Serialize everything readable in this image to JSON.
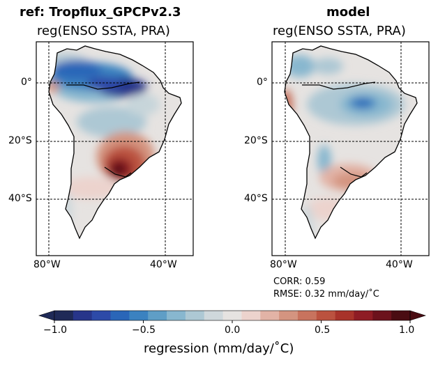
{
  "panels": [
    {
      "name": "ref",
      "title": "ref: Tropflux_GPCPv2.3",
      "subtitle": "reg(ENSO SSTA, PRA)",
      "lat_ticks": [
        "0°",
        "20°S",
        "40°S"
      ],
      "lon_ticks": [
        "80°W",
        "40°W"
      ]
    },
    {
      "name": "model",
      "title": "model",
      "subtitle": "reg(ENSO SSTA, PRA)",
      "lat_ticks": [
        "0°",
        "20°S",
        "40°S"
      ],
      "lon_ticks": [
        "80°W",
        "40°W"
      ],
      "stats": {
        "corr": "CORR: 0.59",
        "rmse": "RMSE: 0.32 mm/day/˚C"
      }
    }
  ],
  "colorbar": {
    "label": "regression (mm/day/˚C)",
    "ticks": [
      "−1.0",
      "−0.5",
      "0.0",
      "0.5",
      "1.0"
    ],
    "tick_values": [
      -1.0,
      -0.5,
      0.0,
      0.5,
      1.0
    ],
    "range": [
      -1.0,
      1.0
    ],
    "colors": [
      "#1f2a57",
      "#27358a",
      "#2d4aa8",
      "#2a66b8",
      "#3b82c0",
      "#5f9ec6",
      "#88b7cf",
      "#adc8d4",
      "#cfd8dc",
      "#e6e3e1",
      "#ecd3cd",
      "#e2b3a6",
      "#d49480",
      "#c8735e",
      "#bb523f",
      "#a8332a",
      "#8e1c24",
      "#6c121c",
      "#4a0c12"
    ]
  },
  "map_extent": {
    "lon": [
      -85,
      -35
    ],
    "lat": [
      -60,
      14
    ]
  },
  "graticule": {
    "lon": [
      -80,
      -40
    ],
    "lat": [
      0,
      -20,
      -40
    ]
  },
  "colors": {
    "wet": "#2d4aa8",
    "dry": "#8e1c24",
    "neutral": "#e6e3e1"
  }
}
